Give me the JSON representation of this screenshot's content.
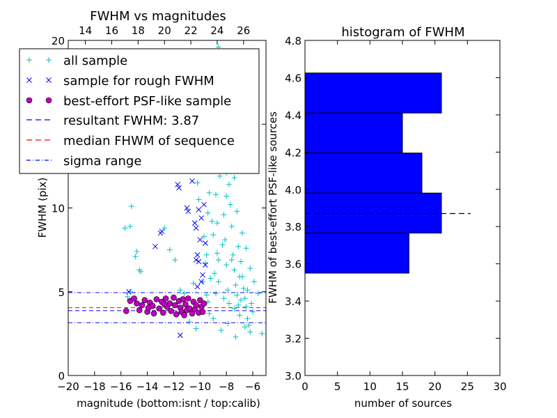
{
  "chart_data": [
    {
      "type": "scatter",
      "title": "FWHM vs magnitudes",
      "xlabel": "magnitude (bottom:isnt / top:calib)",
      "ylabel": "FWHM (pix)",
      "xlim": [
        -20,
        -5
      ],
      "ylim": [
        0,
        20
      ],
      "x_ticks": [
        "−20",
        "−18",
        "−16",
        "−14",
        "−12",
        "−10",
        "−8",
        "−6"
      ],
      "x_tick_values": [
        -20,
        -18,
        -16,
        -14,
        -12,
        -10,
        -8,
        -6
      ],
      "y_ticks": [
        "0",
        "5",
        "10",
        "15",
        "20"
      ],
      "y_tick_values": [
        0,
        5,
        10,
        15,
        20
      ],
      "top_axis": {
        "ticks": [
          "14",
          "16",
          "18",
          "20",
          "22",
          "24",
          "26"
        ],
        "inst_positions": [
          -18.7,
          -16.7,
          -14.7,
          -12.7,
          -10.7,
          -8.7,
          -6.7
        ]
      },
      "legend": {
        "placement": "upper-left",
        "entries": [
          {
            "label": "all sample",
            "marker": "plus",
            "color": "#00bfbf"
          },
          {
            "label": "sample for rough FWHM",
            "marker": "x",
            "color": "#0000ff"
          },
          {
            "label": "best-effort PSF-like sample",
            "marker": "circle",
            "color": "#bf00bf"
          },
          {
            "label": "resultant FWHM: 3.87",
            "marker": "dashed",
            "color": "#0000ff"
          },
          {
            "label": "median FHWM of sequence",
            "marker": "dashed",
            "color": "#ff0000"
          },
          {
            "label": "sigma range",
            "marker": "dashdot",
            "color": "#0000ff"
          }
        ]
      },
      "lines": {
        "resultant_fwhm": 3.87,
        "median_fwhm": 4.05,
        "sigma_low": 3.15,
        "sigma_high": 4.95
      },
      "series": [
        {
          "name": "all sample",
          "color": "#00bfbf",
          "points": [
            [
              -15.2,
              10.1
            ],
            [
              -15.7,
              8.8
            ],
            [
              -15.3,
              8.9
            ],
            [
              -14.8,
              7.4
            ],
            [
              -14.9,
              7.1
            ],
            [
              -14.6,
              6.3
            ],
            [
              -14.5,
              6.2
            ],
            [
              -15.5,
              4.7
            ],
            [
              -15.3,
              5.0
            ],
            [
              -12.7,
              8.8
            ],
            [
              -12.3,
              7.5
            ],
            [
              -11.9,
              6.9
            ],
            [
              -11.5,
              5.1
            ],
            [
              -11.2,
              4.9
            ],
            [
              -10.8,
              3.2
            ],
            [
              -10.5,
              5.5
            ],
            [
              -10.3,
              2.8
            ],
            [
              -10.1,
              10.5
            ],
            [
              -10.2,
              11.5
            ],
            [
              -9.9,
              12.3
            ],
            [
              -9.6,
              6.7
            ],
            [
              -9.5,
              7.2
            ],
            [
              -9.4,
              4.4
            ],
            [
              -9.3,
              3.7
            ],
            [
              -9.2,
              13.4
            ],
            [
              -9.1,
              9.2
            ],
            [
              -9.0,
              8.4
            ],
            [
              -8.9,
              6.1
            ],
            [
              -8.8,
              10.8
            ],
            [
              -8.7,
              7.3
            ],
            [
              -8.6,
              5.6
            ],
            [
              -8.5,
              11.9
            ],
            [
              -8.4,
              14.6
            ],
            [
              -8.3,
              12.8
            ],
            [
              -8.2,
              9.6
            ],
            [
              -8.1,
              8.1
            ],
            [
              -8.0,
              6.6
            ],
            [
              -7.9,
              5.1
            ],
            [
              -7.8,
              4.3
            ],
            [
              -7.7,
              10.2
            ],
            [
              -7.6,
              8.9
            ],
            [
              -7.5,
              7.2
            ],
            [
              -7.4,
              6.3
            ],
            [
              -7.3,
              5.4
            ],
            [
              -7.2,
              4.8
            ],
            [
              -7.1,
              4.2
            ],
            [
              -7.0,
              3.6
            ],
            [
              -6.9,
              6.8
            ],
            [
              -6.8,
              5.9
            ],
            [
              -6.7,
              5.2
            ],
            [
              -6.6,
              4.6
            ],
            [
              -6.5,
              4.1
            ],
            [
              -6.4,
              3.4
            ],
            [
              -6.3,
              3.0
            ],
            [
              -6.2,
              2.6
            ],
            [
              -8.6,
              19.6
            ],
            [
              -8.2,
              19.1
            ],
            [
              -7.5,
              19.3
            ],
            [
              -7.9,
              18.4
            ],
            [
              -8.8,
              17.3
            ],
            [
              -8.1,
              16.6
            ],
            [
              -8.5,
              15.8
            ],
            [
              -7.7,
              15.2
            ],
            [
              -9.1,
              13.2
            ],
            [
              -8.9,
              12.6
            ],
            [
              -8.0,
              12.1
            ],
            [
              -7.8,
              11.4
            ],
            [
              -9.3,
              10.9
            ],
            [
              -7.2,
              9.8
            ],
            [
              -6.8,
              8.5
            ],
            [
              -6.5,
              7.6
            ],
            [
              -6.2,
              6.4
            ],
            [
              -5.9,
              5.6
            ],
            [
              -5.6,
              4.9
            ],
            [
              -5.3,
              2.5
            ],
            [
              -6.0,
              3.8
            ],
            [
              -6.6,
              2.9
            ],
            [
              -7.3,
              2.3
            ],
            [
              -7.9,
              3.1
            ],
            [
              -8.4,
              2.7
            ],
            [
              -9.0,
              3.4
            ],
            [
              -9.5,
              4.8
            ],
            [
              -9.8,
              5.6
            ],
            [
              -9.7,
              8.3
            ],
            [
              -9.4,
              9.7
            ],
            [
              -8.7,
              9.1
            ],
            [
              -8.3,
              7.8
            ],
            [
              -7.6,
              6.9
            ],
            [
              -7.0,
              5.9
            ],
            [
              -6.9,
              4.5
            ],
            [
              -7.4,
              4.0
            ],
            [
              -8.2,
              4.6
            ],
            [
              -8.8,
              4.9
            ],
            [
              -9.2,
              5.8
            ],
            [
              -8.6,
              6.9
            ],
            [
              -8.0,
              10.7
            ],
            [
              -7.4,
              11.8
            ],
            [
              -8.9,
              15.1
            ],
            [
              -8.3,
              14.0
            ],
            [
              -7.6,
              13.1
            ],
            [
              -7.1,
              7.7
            ],
            [
              -6.4,
              5.1
            ],
            [
              -6.1,
              4.3
            ]
          ]
        },
        {
          "name": "sample for rough FWHM",
          "color": "#0000ff",
          "points": [
            [
              -15.4,
              5.0
            ],
            [
              -13.4,
              7.7
            ],
            [
              -13.0,
              8.5
            ],
            [
              -12.9,
              8.6
            ],
            [
              -11.7,
              11.4
            ],
            [
              -11.6,
              11.2
            ],
            [
              -11.5,
              2.4
            ],
            [
              -11.0,
              10.0
            ],
            [
              -10.9,
              9.8
            ],
            [
              -10.6,
              11.6
            ],
            [
              -10.4,
              9.1
            ],
            [
              -10.3,
              8.8
            ],
            [
              -10.2,
              7.2
            ],
            [
              -10.1,
              6.8
            ],
            [
              -10.0,
              8.1
            ],
            [
              -9.9,
              9.4
            ],
            [
              -9.8,
              6.0
            ],
            [
              -9.7,
              10.2
            ],
            [
              -9.6,
              7.9
            ],
            [
              -10.3,
              6.9
            ],
            [
              -10.1,
              9.9
            ],
            [
              -9.9,
              5.6
            ],
            [
              -9.6,
              6.6
            ],
            [
              -10.2,
              5.3
            ]
          ]
        },
        {
          "name": "best-effort PSF-like sample",
          "color": "#bf00bf",
          "points": [
            [
              -15.6,
              3.85
            ],
            [
              -15.3,
              4.45
            ],
            [
              -15.0,
              4.6
            ],
            [
              -14.8,
              4.3
            ],
            [
              -14.6,
              3.9
            ],
            [
              -14.4,
              4.2
            ],
            [
              -14.2,
              4.5
            ],
            [
              -14.0,
              3.8
            ],
            [
              -13.8,
              4.35
            ],
            [
              -13.6,
              4.15
            ],
            [
              -13.5,
              3.7
            ],
            [
              -13.3,
              4.55
            ],
            [
              -13.1,
              4.0
            ],
            [
              -12.9,
              4.4
            ],
            [
              -12.8,
              3.75
            ],
            [
              -12.6,
              4.6
            ],
            [
              -12.5,
              4.1
            ],
            [
              -12.3,
              4.3
            ],
            [
              -12.2,
              3.85
            ],
            [
              -12.0,
              4.65
            ],
            [
              -11.9,
              4.2
            ],
            [
              -11.8,
              3.65
            ],
            [
              -11.6,
              4.45
            ],
            [
              -11.5,
              4.05
            ],
            [
              -11.4,
              3.8
            ],
            [
              -11.3,
              4.55
            ],
            [
              -11.1,
              4.25
            ],
            [
              -11.0,
              3.9
            ],
            [
              -10.9,
              4.6
            ],
            [
              -10.8,
              4.0
            ],
            [
              -10.6,
              3.7
            ],
            [
              -10.5,
              4.4
            ],
            [
              -10.4,
              3.95
            ],
            [
              -10.3,
              4.2
            ],
            [
              -10.1,
              3.75
            ],
            [
              -10.0,
              4.5
            ],
            [
              -9.9,
              4.1
            ],
            [
              -9.8,
              3.8
            ],
            [
              -9.7,
              4.3
            ],
            [
              -12.7,
              4.25
            ],
            [
              -13.9,
              4.05
            ],
            [
              -11.2,
              3.6
            ]
          ]
        }
      ]
    },
    {
      "type": "histogram",
      "title": "histogram of FWHM",
      "orientation": "horizontal",
      "xlabel": "number of sources",
      "ylabel": "FWHM of best-effort PSF-like sources",
      "xlim": [
        0,
        30
      ],
      "ylim": [
        3.0,
        4.8
      ],
      "x_ticks": [
        "0",
        "5",
        "10",
        "15",
        "20",
        "25",
        "30"
      ],
      "x_tick_values": [
        0,
        5,
        10,
        15,
        20,
        25,
        30
      ],
      "y_ticks": [
        "3.0",
        "3.2",
        "3.4",
        "3.6",
        "3.8",
        "4.0",
        "4.2",
        "4.4",
        "4.6",
        "4.8"
      ],
      "y_tick_values": [
        3.0,
        3.2,
        3.4,
        3.6,
        3.8,
        4.0,
        4.2,
        4.4,
        4.6,
        4.8
      ],
      "bar_color": "#0000ff",
      "bins": [
        {
          "low": 3.55,
          "high": 3.765,
          "count": 16
        },
        {
          "low": 3.765,
          "high": 3.98,
          "count": 21
        },
        {
          "low": 3.98,
          "high": 4.195,
          "count": 18
        },
        {
          "low": 4.195,
          "high": 4.41,
          "count": 15
        },
        {
          "low": 4.41,
          "high": 4.625,
          "count": 21
        }
      ],
      "reference_line": {
        "value": 3.87,
        "x_range": [
          0,
          25.5
        ],
        "style": "dashed",
        "color": "#000000"
      }
    }
  ]
}
